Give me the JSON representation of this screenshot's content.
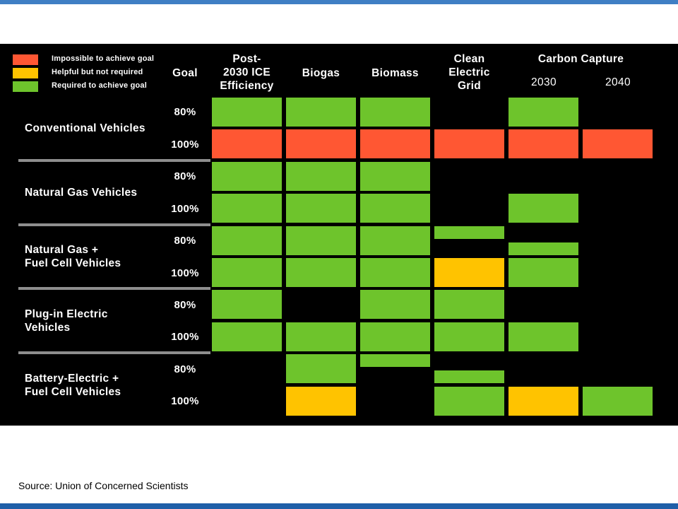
{
  "colors": {
    "impossible": "#ff5733",
    "helpful": "#ffc300",
    "required": "#6ec42c",
    "panel_bg": "#000000",
    "divider": "#8e8e8e",
    "top_bar": "#3f7fc4",
    "bottom_bar": "#1f5fa8"
  },
  "legend": [
    {
      "label": "Impossible to achieve goal",
      "status": "impossible"
    },
    {
      "label": "Helpful but not required",
      "status": "helpful"
    },
    {
      "label": "Required to achieve goal",
      "status": "required"
    }
  ],
  "header": {
    "goal": "Goal",
    "columns": [
      {
        "lines": [
          "Post-",
          "2030 ICE",
          "Efficiency"
        ]
      },
      {
        "lines": [
          "Biogas"
        ]
      },
      {
        "lines": [
          "Biomass"
        ]
      },
      {
        "lines": [
          "Clean",
          "Electric",
          "Grid"
        ]
      }
    ],
    "carbon_capture": "Carbon Capture",
    "carbon_capture_years": [
      "2030",
      "2040"
    ]
  },
  "source": "Source: Union of Concerned Scientists",
  "chart_data": {
    "type": "table",
    "columns": [
      "Post-2030 ICE Efficiency",
      "Biogas",
      "Biomass",
      "Clean Electric Grid",
      "Carbon Capture 2030",
      "Carbon Capture 2040"
    ],
    "groups": [
      {
        "lines": [
          "Conventional Vehicles"
        ],
        "rows": [
          {
            "goal": "80%",
            "cells": [
              "required",
              "required",
              "required",
              "none",
              "required",
              "none"
            ]
          },
          {
            "goal": "100%",
            "cells": [
              "impossible",
              "impossible",
              "impossible",
              "impossible",
              "impossible",
              "impossible"
            ]
          }
        ]
      },
      {
        "lines": [
          "Natural Gas Vehicles"
        ],
        "rows": [
          {
            "goal": "80%",
            "cells": [
              "required",
              "required",
              "required",
              "none",
              "none",
              "none"
            ]
          },
          {
            "goal": "100%",
            "cells": [
              "required",
              "required",
              "required",
              "none",
              "required",
              "none"
            ]
          }
        ]
      },
      {
        "lines": [
          "Natural Gas +",
          "Fuel Cell Vehicles"
        ],
        "rows": [
          {
            "goal": "80%",
            "cells": [
              "required",
              "required",
              "required",
              "required-top",
              "required-bottom",
              "none"
            ]
          },
          {
            "goal": "100%",
            "cells": [
              "required",
              "required",
              "required",
              "helpful",
              "required",
              "none"
            ]
          }
        ]
      },
      {
        "lines": [
          "Plug-in Electric",
          "Vehicles"
        ],
        "rows": [
          {
            "goal": "80%",
            "cells": [
              "required",
              "none",
              "required",
              "required",
              "none",
              "none"
            ]
          },
          {
            "goal": "100%",
            "cells": [
              "required",
              "required",
              "required",
              "required",
              "required",
              "none"
            ]
          }
        ]
      },
      {
        "lines": [
          "Battery-Electric +",
          "Fuel Cell Vehicles"
        ],
        "rows": [
          {
            "goal": "80%",
            "cells": [
              "none",
              "required",
              "required-top",
              "required-bottom",
              "none",
              "none"
            ]
          },
          {
            "goal": "100%",
            "cells": [
              "none",
              "helpful",
              "none",
              "required",
              "helpful",
              "required"
            ]
          }
        ]
      }
    ]
  }
}
